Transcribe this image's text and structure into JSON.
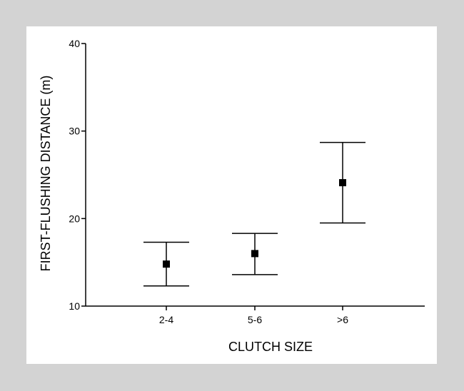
{
  "chart_data": {
    "type": "scatter",
    "xlabel": "CLUTCH SIZE",
    "ylabel": "FIRST-FLUSHING DISTANCE (m)",
    "categories": [
      "2-4",
      "5-6",
      ">6"
    ],
    "values": [
      14.8,
      16.0,
      24.1
    ],
    "error_low": [
      12.3,
      13.6,
      19.5
    ],
    "error_high": [
      17.3,
      18.3,
      28.7
    ],
    "ylim": [
      10,
      40
    ],
    "yticks": [
      10,
      20,
      30,
      40
    ],
    "grid": false,
    "colors": {
      "marker": "#000000",
      "axis": "#000000",
      "background": "#ffffff",
      "frame": "#d3d3d3"
    }
  }
}
